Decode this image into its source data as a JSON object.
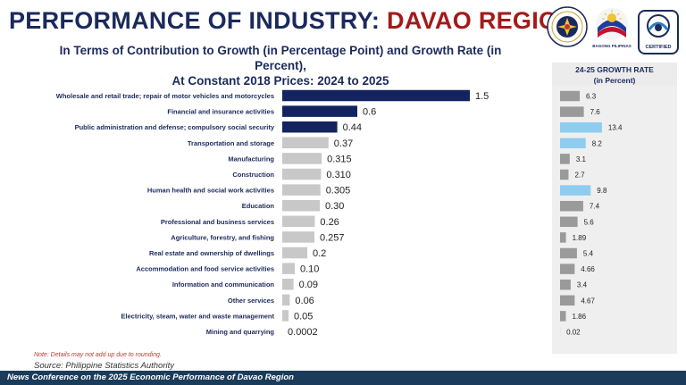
{
  "header": {
    "title_main": "PERFORMANCE OF INDUSTRY:",
    "title_region": "DAVAO REGION",
    "subtitle_line1": "In Terms of Contribution to Growth (in Percentage Point) and Growth Rate (in Percent),",
    "subtitle_line2": "At Constant 2018 Prices: 2024 to 2025"
  },
  "logos": {
    "bp_caption": "BAGONG PILIPINAS",
    "cert_caption": "CERTIFIED"
  },
  "growth_rate_header": {
    "line1": "24-25 GROWTH RATE",
    "line2": "(in Percent)"
  },
  "colors": {
    "dark_bar": "#13235f",
    "gray_bar": "#c8c8c8",
    "gr_gray": "#9a9a9a",
    "gr_highlight": "#8ecdf0"
  },
  "chart_data": [
    {
      "type": "bar",
      "orientation": "horizontal",
      "title": "Contribution to Growth (in Percentage Point)",
      "categories": [
        "Wholesale and retail trade; repair of motor vehicles and motorcycles",
        "Financial and insurance activities",
        "Public administration and defense; compulsory social security",
        "Transportation and storage",
        "Manufacturing",
        "Construction",
        "Human health and social work activities",
        "Education",
        "Professional and business services",
        "Agriculture, forestry, and fishing",
        "Real estate and ownership of dwellings",
        "Accommodation and food service activities",
        "Information and communication",
        "Other services",
        "Electricity, steam, water and waste management",
        "Mining and quarrying"
      ],
      "values": [
        1.5,
        0.6,
        0.44,
        0.37,
        0.315,
        0.31,
        0.305,
        0.3,
        0.26,
        0.257,
        0.2,
        0.1,
        0.09,
        0.06,
        0.05,
        0.0002
      ],
      "value_labels": [
        "1.5",
        "0.6",
        "0.44",
        "0.37",
        "0.315",
        "0.310",
        "0.305",
        "0.30",
        "0.26",
        "0.257",
        "0.2",
        "0.10",
        "0.09",
        "0.06",
        "0.05",
        "0.0002"
      ],
      "highlight": [
        true,
        true,
        true,
        false,
        false,
        false,
        false,
        false,
        false,
        false,
        false,
        false,
        false,
        false,
        false,
        false
      ]
    },
    {
      "type": "bar",
      "orientation": "horizontal",
      "title": "24-25 GROWTH RATE (in Percent)",
      "categories": [
        "Wholesale and retail trade; repair of motor vehicles and motorcycles",
        "Financial and insurance activities",
        "Public administration and defense; compulsory social security",
        "Transportation and storage",
        "Manufacturing",
        "Construction",
        "Human health and social work activities",
        "Education",
        "Professional and business services",
        "Agriculture, forestry, and fishing",
        "Real estate and ownership of dwellings",
        "Accommodation and food service activities",
        "Information and communication",
        "Other services",
        "Electricity, steam, water and waste management",
        "Mining and quarrying"
      ],
      "values": [
        6.3,
        7.6,
        13.4,
        8.2,
        3.1,
        2.7,
        9.8,
        7.4,
        5.6,
        1.89,
        5.4,
        4.66,
        3.4,
        4.67,
        1.86,
        0.02
      ],
      "value_labels": [
        "6.3",
        "7.6",
        "13.4",
        "8.2",
        "3.1",
        "2.7",
        "9.8",
        "7.4",
        "5.6",
        "1.89",
        "5.4",
        "4.66",
        "3.4",
        "4.67",
        "1.86",
        "0.02"
      ],
      "highlight": [
        false,
        false,
        true,
        true,
        false,
        false,
        true,
        false,
        false,
        false,
        false,
        false,
        false,
        false,
        false,
        false
      ]
    }
  ],
  "footnotes": {
    "note": "Note: Details may not add up due to rounding.",
    "source": "Source: Philippine Statistics Authority"
  },
  "footer": {
    "text": "News Conference on the 2025 Economic Performance of Davao Region"
  }
}
